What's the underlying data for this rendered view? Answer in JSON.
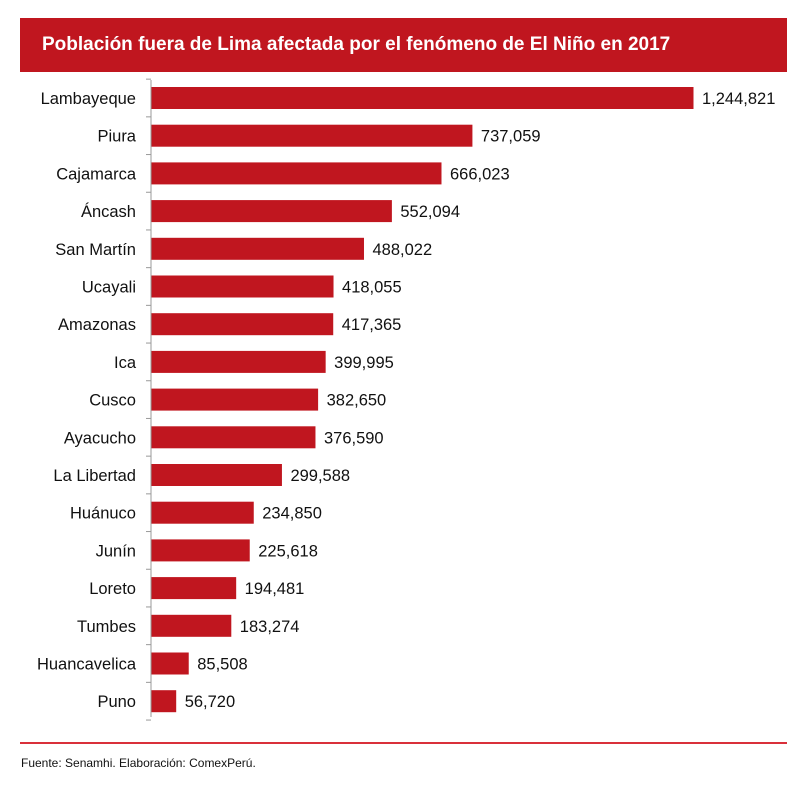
{
  "chart_data": {
    "type": "bar",
    "orientation": "horizontal",
    "title": "Población fuera de Lima afectada por el fenómeno de El Niño en 2017",
    "categories": [
      "Lambayeque",
      "Piura",
      "Cajamarca",
      "Áncash",
      "San Martín",
      "Ucayali",
      "Amazonas",
      "Ica",
      "Cusco",
      "Ayacucho",
      "La Libertad",
      "Huánuco",
      "Junín",
      "Loreto",
      "Tumbes",
      "Huancavelica",
      "Puno"
    ],
    "values": [
      1244821,
      737059,
      666023,
      552094,
      488022,
      418055,
      417365,
      399995,
      382650,
      376590,
      299588,
      234850,
      225618,
      194481,
      183274,
      85508,
      56720
    ],
    "value_labels": [
      "1,244,821",
      "737,059",
      "666,023",
      "552,094",
      "488,022",
      "418,055",
      "417,365",
      "399,995",
      "382,650",
      "376,590",
      "299,588",
      "234,850",
      "225,618",
      "194,481",
      "183,274",
      "85,508",
      "56,720"
    ],
    "xlabel": "",
    "ylabel": "",
    "xlim": [
      0,
      1250000
    ],
    "grid": false,
    "legend": "none",
    "bar_color": "#c0161f"
  },
  "footer": {
    "source": "Fuente: Senamhi. Elaboración: ComexPerú."
  },
  "colors": {
    "accent": "#c0161f",
    "rule": "#d9303a"
  }
}
